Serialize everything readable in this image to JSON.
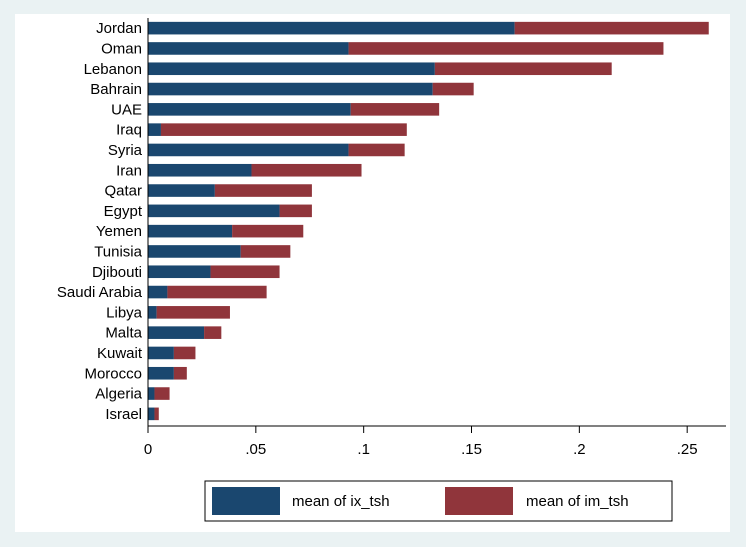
{
  "chart_data": {
    "type": "bar",
    "orientation": "horizontal",
    "stacked": true,
    "categories": [
      "Jordan",
      "Oman",
      "Lebanon",
      "Bahrain",
      "UAE",
      "Iraq",
      "Syria",
      "Iran",
      "Qatar",
      "Egypt",
      "Yemen",
      "Tunisia",
      "Djibouti",
      "Saudi Arabia",
      "Libya",
      "Malta",
      "Kuwait",
      "Morocco",
      "Algeria",
      "Israel"
    ],
    "series": [
      {
        "name": "mean of ix_tsh",
        "color": "#1a476f",
        "values": [
          0.17,
          0.093,
          0.133,
          0.132,
          0.094,
          0.006,
          0.093,
          0.048,
          0.031,
          0.061,
          0.039,
          0.043,
          0.029,
          0.009,
          0.004,
          0.026,
          0.012,
          0.012,
          0.003,
          0.003
        ]
      },
      {
        "name": "mean of im_tsh",
        "color": "#90353b",
        "values": [
          0.09,
          0.146,
          0.082,
          0.019,
          0.041,
          0.114,
          0.026,
          0.051,
          0.045,
          0.015,
          0.033,
          0.023,
          0.032,
          0.046,
          0.034,
          0.008,
          0.01,
          0.006,
          0.007,
          0.002
        ]
      }
    ],
    "xlim": [
      0,
      0.268
    ],
    "xticks": [
      0,
      0.05,
      0.1,
      0.15,
      0.2,
      0.25
    ],
    "xtick_labels": [
      "0",
      ".05",
      ".1",
      ".15",
      ".2",
      ".25"
    ],
    "grid": false,
    "legend_position": "bottom",
    "title": "",
    "xlabel": "",
    "ylabel": ""
  }
}
